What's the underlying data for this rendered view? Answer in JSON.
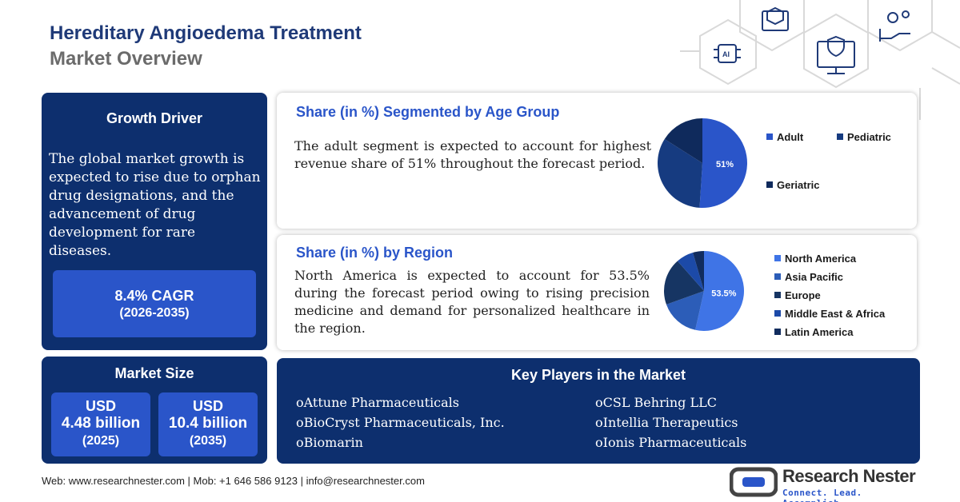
{
  "header": {
    "title_line1": "Hereditary Angioedema Treatment",
    "title_line2": "Market Overview"
  },
  "growth": {
    "title": "Growth Driver",
    "text": "The global market growth is expected to rise due to orphan drug designations, and the advancement of drug development for rare diseases.",
    "cagr_value": "8.4% CAGR",
    "cagr_range": "(2026-2035)"
  },
  "market_size": {
    "title": "Market Size",
    "items": [
      {
        "currency": "USD",
        "amount": "4.48 billion",
        "year": "(2025)"
      },
      {
        "currency": "USD",
        "amount": "10.4 billion",
        "year": "(2035)"
      }
    ]
  },
  "age": {
    "title": "Share (in %) Segmented by Age Group",
    "text": "The adult segment is expected to account for highest revenue share of 51% throughout the forecast period."
  },
  "region": {
    "title": "Share (in %) by Region",
    "text": "North America is expected to account for 53.5% during the forecast period owing to rising precision medicine and demand for personalized healthcare in the region."
  },
  "players": {
    "title": "Key Players in the Market",
    "bullet": "o",
    "left": [
      "Attune Pharmaceuticals",
      "BioCryst Pharmaceuticals, Inc.",
      "Biomarin"
    ],
    "right": [
      "CSL Behring LLC",
      "Intellia Therapeutics",
      "Ionis Pharmaceuticals"
    ]
  },
  "footer": {
    "contact": "Web: www.researchnester.com | Mob: +1 646 586 9123 | info@researchnester.com"
  },
  "logo": {
    "name": "Research Nester",
    "tagline": "Connect. Lead. Accomplish",
    "color": "#2a55c9"
  },
  "decor_icons": [
    "cube-icon",
    "gears-hand-icon",
    "ai-chip-icon",
    "monitor-shield-icon"
  ],
  "chart_data": [
    {
      "type": "pie",
      "title": "Share (in %) Segmented by Age Group",
      "categories": [
        "Adult",
        "Pediatric",
        "Geriatric"
      ],
      "values": [
        51,
        33,
        16
      ],
      "labels": [
        "51%",
        "",
        ""
      ],
      "colors": [
        "#2a55c9",
        "#163b80",
        "#0f2a5c"
      ],
      "legend_placement": "right"
    },
    {
      "type": "pie",
      "title": "Share (in %) by Region",
      "categories": [
        "North America",
        "Asia Pacific",
        "Europe",
        "Middle East & Africa",
        "Latin America"
      ],
      "values": [
        53.5,
        16,
        19,
        7,
        4.5
      ],
      "labels": [
        "53.5%",
        "",
        "",
        "",
        ""
      ],
      "colors": [
        "#3f74e6",
        "#2c5db8",
        "#163563",
        "#1c4aa8",
        "#112c5e"
      ],
      "legend_placement": "right"
    }
  ]
}
